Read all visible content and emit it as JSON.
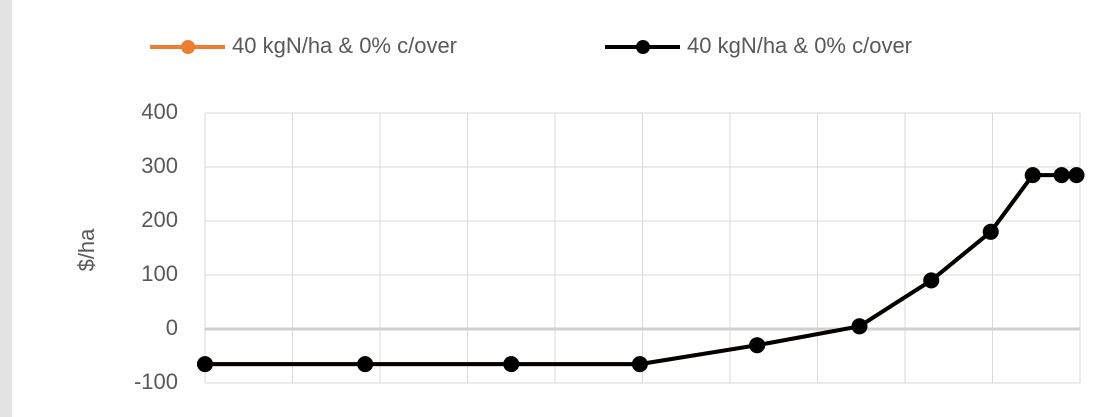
{
  "chart_data": {
    "type": "line",
    "y_label": "$/ha",
    "x": [
      0,
      1.83,
      3.5,
      4.97,
      6.31,
      7.48,
      8.3,
      8.98,
      9.46,
      9.79,
      9.96
    ],
    "series": [
      {
        "name": "40 kgN/ha & 0% c/over",
        "color": "#ed7d31",
        "values": [
          -65,
          -65,
          -65,
          -65,
          -30,
          5,
          90,
          180,
          285,
          285,
          285
        ]
      },
      {
        "name": "40 kgN/ha & 0% c/over",
        "color": "#000000",
        "values": [
          -65,
          -65,
          -65,
          -65,
          -30,
          5,
          90,
          180,
          285,
          285,
          285
        ]
      }
    ],
    "xlim": [
      0,
      10
    ],
    "xticks": [
      0,
      1,
      2,
      3,
      4,
      5,
      6,
      7,
      8,
      9,
      10
    ],
    "ylim": [
      -100,
      400
    ],
    "yticks": [
      -100,
      0,
      100,
      200,
      300,
      400
    ],
    "grid": true,
    "legend": "top"
  }
}
